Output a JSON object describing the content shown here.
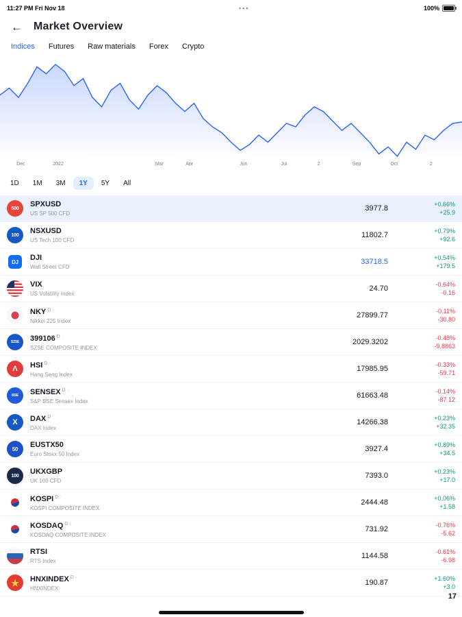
{
  "status_bar": {
    "left": "11:27 PM  Fri Nov 18",
    "center": "•••",
    "battery_pct": "100%"
  },
  "header": {
    "back": "←",
    "title": "Market Overview"
  },
  "tabs": [
    {
      "label": "Indices",
      "active": true
    },
    {
      "label": "Futures",
      "active": false
    },
    {
      "label": "Raw materials",
      "active": false
    },
    {
      "label": "Forex",
      "active": false
    },
    {
      "label": "Crypto",
      "active": false
    }
  ],
  "chart_data": {
    "type": "line",
    "title": "SPXUSD 1Y price chart",
    "line_color": "#2962ff",
    "fill_top_color": "rgba(41,98,255,0.25)",
    "fill_bottom_color": "rgba(41,98,255,0)",
    "values": [
      4287,
      4368,
      4260,
      4422,
      4611,
      4530,
      4638,
      4557,
      4395,
      4476,
      4260,
      4152,
      4341,
      4422,
      4233,
      4125,
      4287,
      4395,
      4314,
      4193,
      4098,
      4193,
      4017,
      3923,
      3855,
      3747,
      3653,
      3720,
      3828,
      3747,
      3855,
      3963,
      3923,
      4058,
      4152,
      4098,
      3990,
      3882,
      3963,
      3855,
      3747,
      3612,
      3693,
      3585,
      3747,
      3666,
      3828,
      3774,
      3882,
      3963,
      3978
    ],
    "x_axis_labels": [
      {
        "label": "Dec",
        "pos": 0.045
      },
      {
        "label": "2022",
        "pos": 0.126
      },
      {
        "label": "Mar",
        "pos": 0.345
      },
      {
        "label": "Apr",
        "pos": 0.41
      },
      {
        "label": "Jun",
        "pos": 0.527
      },
      {
        "label": "Jul",
        "pos": 0.615
      },
      {
        "label": "2",
        "pos": 0.69
      },
      {
        "label": "Sep",
        "pos": 0.772
      },
      {
        "label": "Oct",
        "pos": 0.853
      },
      {
        "label": "2",
        "pos": 0.933
      }
    ]
  },
  "ranges": [
    {
      "label": "1D",
      "active": false
    },
    {
      "label": "1M",
      "active": false
    },
    {
      "label": "3M",
      "active": false
    },
    {
      "label": "1Y",
      "active": true
    },
    {
      "label": "5Y",
      "active": false
    },
    {
      "label": "All",
      "active": false
    }
  ],
  "colors": {
    "up": "#089981",
    "down": "#f23645",
    "accent": "#2962ff"
  },
  "instruments": [
    {
      "symbol": "SPXUSD",
      "marker": "",
      "desc": "US SP 500 CFD",
      "price": "3977.8",
      "pct": "+0.66%",
      "chg": "+25.9",
      "dir": "up",
      "selected": true,
      "icon": {
        "kind": "circle",
        "name": "sp500-icon",
        "bg": "#e8443a",
        "label": "500",
        "fs": 7
      }
    },
    {
      "symbol": "NSXUSD",
      "marker": "",
      "desc": "US Tech 100 CFD",
      "price": "11802.7",
      "pct": "+0.79%",
      "chg": "+92.6",
      "dir": "up",
      "icon": {
        "kind": "circle",
        "name": "nasdaq100-icon",
        "bg": "#1659c4",
        "label": "100",
        "fs": 7
      }
    },
    {
      "symbol": "DJI",
      "marker": "",
      "desc": "Wall Street CFD",
      "price": "33718.5",
      "pct": "+0.54%",
      "chg": "+179.5",
      "dir": "up",
      "price_accent": true,
      "icon": {
        "kind": "square",
        "name": "dji-icon",
        "bg": "#0f6cf6",
        "label": "DJ"
      }
    },
    {
      "symbol": "VIX",
      "marker": "",
      "desc": "US Volatility Index",
      "price": "24.70",
      "pct": "-0.64%",
      "chg": "-0.16",
      "dir": "down",
      "icon": {
        "kind": "flag",
        "name": "us-flag-icon",
        "flag": "us"
      }
    },
    {
      "symbol": "NKY",
      "marker": "D ·",
      "desc": "Nikkei 225 Index",
      "price": "27899.77",
      "pct": "-0.11%",
      "chg": "-30.80",
      "dir": "down",
      "icon": {
        "kind": "flag",
        "name": "japan-flag-icon",
        "flag": "jp"
      }
    },
    {
      "symbol": "399106",
      "marker": "D ·",
      "desc": "SZSE COMPOSITE INDEX",
      "price": "2029.3202",
      "pct": "-0.48%",
      "chg": "-9.8863",
      "dir": "down",
      "icon": {
        "kind": "circle",
        "name": "szse-icon",
        "bg": "#1659c4",
        "label": "SZSE",
        "fs": 5
      }
    },
    {
      "symbol": "HSI",
      "marker": "D ·",
      "desc": "Hang Seng Index",
      "price": "17985.95",
      "pct": "-0.33%",
      "chg": "-59.71",
      "dir": "down",
      "icon": {
        "kind": "circle",
        "name": "hsi-icon",
        "bg": "#e23b3b",
        "label": "Λ",
        "fs": 11
      }
    },
    {
      "symbol": "SENSEX",
      "marker": "D ·",
      "desc": "S&P BSE Sensex Index",
      "price": "61663.48",
      "pct": "-0.14%",
      "chg": "-87.12",
      "dir": "down",
      "icon": {
        "kind": "circle",
        "name": "bse-icon",
        "bg": "#1f5bd8",
        "label": "BSE",
        "fs": 5
      }
    },
    {
      "symbol": "DAX",
      "marker": "D",
      "desc": "DAX Index",
      "price": "14266.38",
      "pct": "+0.23%",
      "chg": "+32.35",
      "dir": "up",
      "icon": {
        "kind": "circle",
        "name": "dax-icon",
        "bg": "#1659c4",
        "label": "X",
        "fs": 11
      }
    },
    {
      "symbol": "EUSTX50",
      "marker": "",
      "desc": "Euro Stoxx 50 Index",
      "price": "3927.4",
      "pct": "+0.89%",
      "chg": "+34.5",
      "dir": "up",
      "icon": {
        "kind": "circle",
        "name": "eurostoxx50-icon",
        "bg": "#1d51c8",
        "label": "50",
        "fs": 8
      }
    },
    {
      "symbol": "UKXGBP",
      "marker": "",
      "desc": "UK 100 CFD",
      "price": "7393.0",
      "pct": "+0.23%",
      "chg": "+17.0",
      "dir": "up",
      "icon": {
        "kind": "circle",
        "name": "uk100-icon",
        "bg": "#1b2a4a",
        "label": "100",
        "fs": 7
      }
    },
    {
      "symbol": "KOSPI",
      "marker": "D ·",
      "desc": "KOSPI COMPOSITE INDEX",
      "price": "2444.48",
      "pct": "+0.06%",
      "chg": "+1.58",
      "dir": "up",
      "icon": {
        "kind": "flag",
        "name": "korea-flag-icon",
        "flag": "kr"
      }
    },
    {
      "symbol": "KOSDAQ",
      "marker": "D ·",
      "desc": "KOSDAQ COMPOSITE INDEX",
      "price": "731.92",
      "pct": "-0.76%",
      "chg": "-5.62",
      "dir": "down",
      "icon": {
        "kind": "flag",
        "name": "korea-flag-icon",
        "flag": "kr"
      }
    },
    {
      "symbol": "RTSI",
      "marker": "",
      "desc": "RTS Index",
      "price": "1144.58",
      "pct": "-0.61%",
      "chg": "-6.98",
      "dir": "down",
      "icon": {
        "kind": "flag",
        "name": "russia-flag-icon",
        "flag": "ru"
      }
    },
    {
      "symbol": "HNXINDEX",
      "marker": "D ·",
      "desc": "HNXINDEX",
      "price": "190.87",
      "pct": "+1.60%",
      "chg": "+3.0",
      "dir": "up",
      "icon": {
        "kind": "flag",
        "name": "vietnam-flag-icon",
        "flag": "vn"
      }
    }
  ],
  "watermark": "17"
}
